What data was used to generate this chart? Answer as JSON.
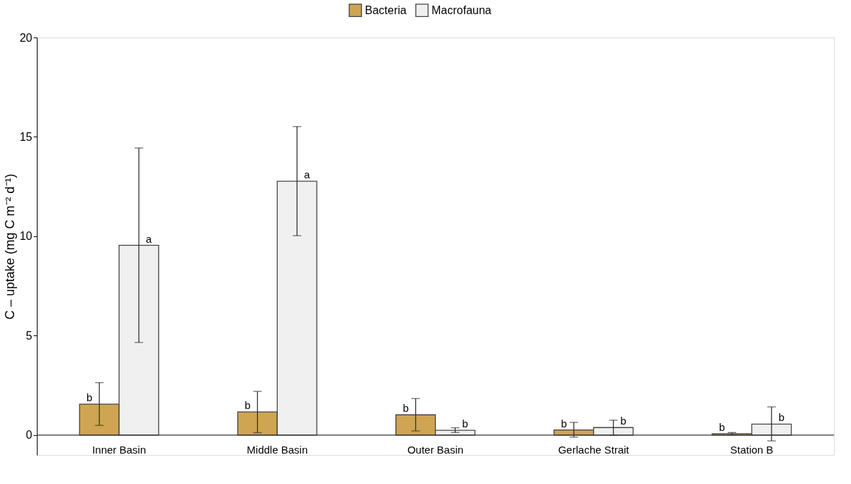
{
  "chart_data": {
    "type": "bar",
    "ylabel": "C – uptake (mg C m⁻² d⁻¹)",
    "categories": [
      "Inner Basin",
      "Middle Basin",
      "Outer Basin",
      "Gerlache Strait",
      "Station B"
    ],
    "series": [
      {
        "name": "Bacteria",
        "color": "#cfa452",
        "values": [
          1.56,
          1.17,
          1.02,
          0.26,
          0.07
        ],
        "errors": [
          [
            0.49,
            2.64
          ],
          [
            0.12,
            2.2
          ],
          [
            0.21,
            1.84
          ],
          [
            -0.1,
            0.64
          ],
          [
            0.01,
            0.13
          ]
        ]
      },
      {
        "name": "Macrofauna",
        "color": "#f0f0f0",
        "values": [
          9.55,
          12.77,
          0.24,
          0.38,
          0.55
        ],
        "errors": [
          [
            4.66,
            14.44
          ],
          [
            10.03,
            15.52
          ],
          [
            0.13,
            0.37
          ],
          [
            0.0,
            0.75
          ],
          [
            -0.29,
            1.42
          ]
        ]
      }
    ],
    "ylim": [
      -1,
      20
    ],
    "yticks": [
      0,
      5,
      10,
      15,
      20
    ],
    "ref_lines": [
      {
        "axis": "y",
        "value": 0,
        "color": "#333333"
      }
    ],
    "annotations": [
      {
        "text": "b",
        "x": "Inner Basin",
        "y": 1.56
      },
      {
        "text": "a",
        "x": "Inner Basin",
        "y": 9.55
      },
      {
        "text": "b",
        "x": "Middle Basin",
        "y": 1.17
      },
      {
        "text": "a",
        "x": "Middle Basin",
        "y": 12.77
      },
      {
        "text": "b",
        "x": "Outer Basin",
        "y": 1.02
      },
      {
        "text": "b",
        "x": "Outer Basin",
        "y": 0.24
      },
      {
        "text": "b",
        "x": "Gerlache Strait",
        "y": 0.26
      },
      {
        "text": "b",
        "x": "Gerlache Strait",
        "y": 0.38
      },
      {
        "text": "b",
        "x": "Station B",
        "y": 0.07
      },
      {
        "text": "b",
        "x": "Station B",
        "y": 0.55
      }
    ],
    "legend": "top",
    "grid": false
  }
}
